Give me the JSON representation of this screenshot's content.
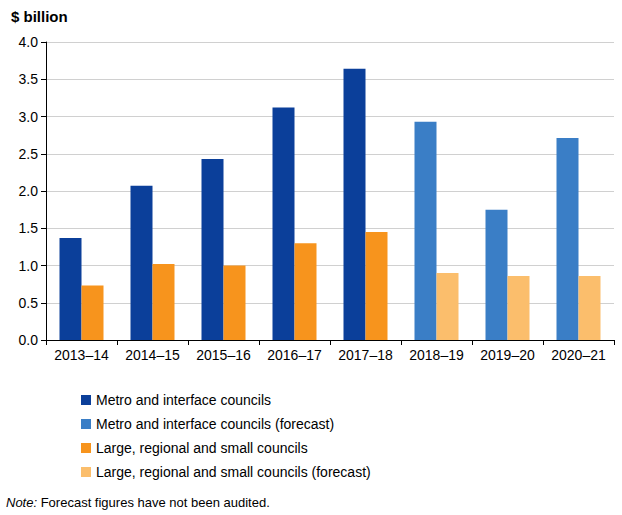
{
  "chart_data": {
    "type": "bar",
    "title": "$ billion",
    "note": "Note: Forecast figures have not been audited.",
    "categories": [
      "2013–14",
      "2014–15",
      "2015–16",
      "2016–17",
      "2017–18",
      "2018–19",
      "2019–20",
      "2020–21"
    ],
    "series": [
      {
        "name": "Metro and interface councils",
        "color": "#0b3f9a",
        "values": [
          1.37,
          2.07,
          2.43,
          3.12,
          3.64,
          null,
          null,
          null
        ]
      },
      {
        "name": "Metro and interface councils (forecast)",
        "color": "#3a7ec6",
        "values": [
          null,
          null,
          null,
          null,
          null,
          2.93,
          1.75,
          2.71
        ]
      },
      {
        "name": "Large, regional and small councils",
        "color": "#f7941d",
        "values": [
          0.73,
          1.02,
          1.0,
          1.3,
          1.45,
          null,
          null,
          null
        ]
      },
      {
        "name": "Large, regional and small councils (forecast)",
        "color": "#fbbe6c",
        "values": [
          null,
          null,
          null,
          null,
          null,
          0.9,
          0.86,
          0.86
        ]
      }
    ],
    "ylim": [
      0,
      4
    ],
    "yticks": [
      {
        "value": 0,
        "label": "0.0"
      },
      {
        "value": 0.5,
        "label": "0.5"
      },
      {
        "value": 1,
        "label": "1.0"
      },
      {
        "value": 1.5,
        "label": "1.5"
      },
      {
        "value": 2,
        "label": "2.0"
      },
      {
        "value": 2.5,
        "label": "2.5"
      },
      {
        "value": 3,
        "label": "3.0"
      },
      {
        "value": 3.5,
        "label": "3.5"
      },
      {
        "value": 4,
        "label": "4.0"
      }
    ],
    "grid": true,
    "legend": "bottom"
  }
}
